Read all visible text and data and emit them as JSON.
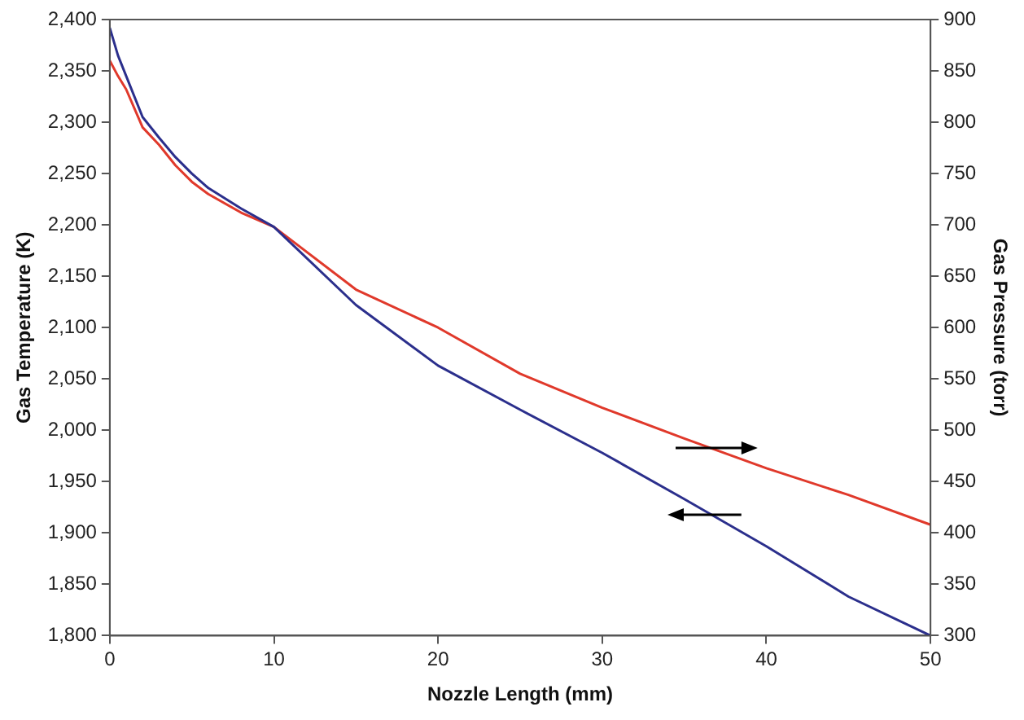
{
  "chart_data": {
    "type": "line",
    "xlabel": "Nozzle Length (mm)",
    "ylabel": "Gas Temperature (K)",
    "y2label": "Gas Pressure (torr)",
    "xlim": [
      0,
      50
    ],
    "xticks": [
      0,
      10,
      20,
      30,
      40,
      50
    ],
    "ylim": [
      1800,
      2400
    ],
    "yticks": [
      {
        "value": 1800,
        "label": "1,800"
      },
      {
        "value": 1850,
        "label": "1,850"
      },
      {
        "value": 1900,
        "label": "1,900"
      },
      {
        "value": 1950,
        "label": "1,950"
      },
      {
        "value": 2000,
        "label": "2,000"
      },
      {
        "value": 2050,
        "label": "2,050"
      },
      {
        "value": 2100,
        "label": "2,100"
      },
      {
        "value": 2150,
        "label": "2,150"
      },
      {
        "value": 2200,
        "label": "2,200"
      },
      {
        "value": 2250,
        "label": "2,250"
      },
      {
        "value": 2300,
        "label": "2,300"
      },
      {
        "value": 2350,
        "label": "2,350"
      },
      {
        "value": 2400,
        "label": "2,400"
      }
    ],
    "y2lim": [
      300,
      900
    ],
    "y2ticks": [
      300,
      350,
      400,
      450,
      500,
      550,
      600,
      650,
      700,
      750,
      800,
      850,
      900
    ],
    "grid": false,
    "legend": false,
    "marker": "none",
    "line_style": "solid",
    "series": [
      {
        "color": "#2b2f8c",
        "x": [
          0,
          0.5,
          1,
          2,
          3,
          4,
          5,
          6,
          8,
          10,
          15,
          20,
          25,
          30,
          35,
          40,
          45,
          50
        ],
        "values": [
          2392,
          2365,
          2345,
          2305,
          2285,
          2266,
          2250,
          2236,
          2216,
          2198,
          2122,
          2063,
          2020,
          1978,
          1933,
          1887,
          1838,
          1800
        ]
      },
      {
        "color": "#e0392b",
        "axis": "y2",
        "x": [
          0,
          0.5,
          1,
          2,
          3,
          4,
          5,
          6,
          8,
          10,
          15,
          20,
          25,
          30,
          35,
          40,
          45,
          50
        ],
        "values": [
          860,
          845,
          832,
          795,
          778,
          758,
          742,
          730,
          712,
          698,
          637,
          600,
          555,
          522,
          492,
          463,
          437,
          408
        ]
      }
    ]
  }
}
